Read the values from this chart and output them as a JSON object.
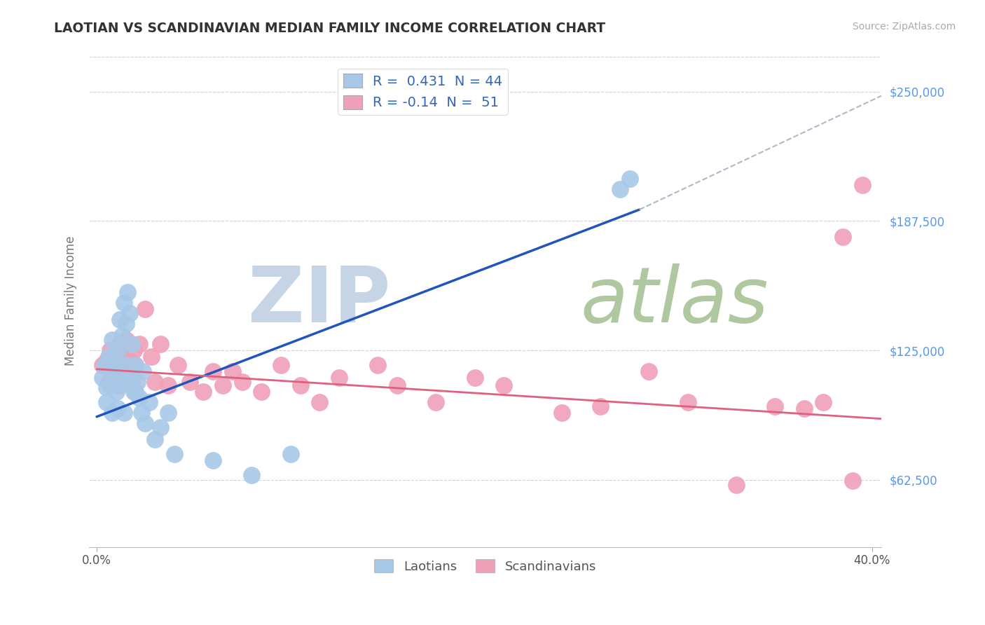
{
  "title": "LAOTIAN VS SCANDINAVIAN MEDIAN FAMILY INCOME CORRELATION CHART",
  "source": "Source: ZipAtlas.com",
  "ylabel": "Median Family Income",
  "legend_labels": [
    "Laotians",
    "Scandinavians"
  ],
  "ytick_labels": [
    "$62,500",
    "$125,000",
    "$187,500",
    "$250,000"
  ],
  "ytick_values": [
    62500,
    125000,
    187500,
    250000
  ],
  "y_min": 30000,
  "y_max": 268000,
  "x_min": -0.004,
  "x_max": 0.405,
  "blue_R": 0.431,
  "blue_N": 44,
  "pink_R": -0.14,
  "pink_N": 51,
  "background_color": "#ffffff",
  "grid_color": "#c8c8c8",
  "blue_color": "#a8c8e8",
  "pink_color": "#f0a0b8",
  "blue_line_color": "#2255bb",
  "pink_line_color": "#e06080",
  "dash_line_color": "#b0b8c8",
  "title_color": "#333333",
  "source_color": "#aaaaaa",
  "ytick_color": "#5599ee",
  "xtick_color": "#555555",
  "ylabel_color": "#777777",
  "watermark_zip_color": "#c5d5e5",
  "watermark_atlas_color": "#b0c8a0",
  "blue_line_x": [
    0.0,
    0.28
  ],
  "blue_line_y": [
    93000,
    193000
  ],
  "pink_line_x": [
    0.0,
    0.405
  ],
  "pink_line_y": [
    116000,
    92000
  ],
  "dash_line_x": [
    0.28,
    0.405
  ],
  "dash_line_y": [
    193000,
    248000
  ],
  "blue_scatter_x": [
    0.003,
    0.004,
    0.005,
    0.005,
    0.006,
    0.007,
    0.007,
    0.008,
    0.008,
    0.009,
    0.01,
    0.01,
    0.011,
    0.011,
    0.012,
    0.012,
    0.013,
    0.013,
    0.014,
    0.014,
    0.015,
    0.015,
    0.016,
    0.017,
    0.018,
    0.018,
    0.019,
    0.02,
    0.02,
    0.021,
    0.022,
    0.023,
    0.024,
    0.025,
    0.027,
    0.03,
    0.033,
    0.037,
    0.04,
    0.06,
    0.08,
    0.1,
    0.27,
    0.275
  ],
  "blue_scatter_y": [
    112000,
    118000,
    107000,
    100000,
    122000,
    115000,
    108000,
    130000,
    95000,
    110000,
    118000,
    105000,
    125000,
    97000,
    140000,
    108000,
    132000,
    112000,
    148000,
    95000,
    118000,
    138000,
    153000,
    143000,
    113000,
    128000,
    105000,
    118000,
    105000,
    110000,
    102000,
    95000,
    115000,
    90000,
    100000,
    82000,
    88000,
    95000,
    75000,
    72000,
    65000,
    75000,
    203000,
    208000
  ],
  "pink_scatter_x": [
    0.003,
    0.005,
    0.006,
    0.007,
    0.008,
    0.009,
    0.01,
    0.011,
    0.012,
    0.013,
    0.014,
    0.015,
    0.016,
    0.017,
    0.018,
    0.019,
    0.02,
    0.022,
    0.025,
    0.028,
    0.03,
    0.033,
    0.037,
    0.042,
    0.048,
    0.055,
    0.06,
    0.065,
    0.07,
    0.075,
    0.085,
    0.095,
    0.105,
    0.115,
    0.125,
    0.145,
    0.155,
    0.175,
    0.195,
    0.21,
    0.24,
    0.26,
    0.285,
    0.305,
    0.33,
    0.35,
    0.365,
    0.375,
    0.385,
    0.39,
    0.395
  ],
  "pink_scatter_y": [
    118000,
    120000,
    110000,
    125000,
    115000,
    112000,
    120000,
    108000,
    128000,
    118000,
    122000,
    130000,
    115000,
    120000,
    110000,
    125000,
    118000,
    128000,
    145000,
    122000,
    110000,
    128000,
    108000,
    118000,
    110000,
    105000,
    115000,
    108000,
    115000,
    110000,
    105000,
    118000,
    108000,
    100000,
    112000,
    118000,
    108000,
    100000,
    112000,
    108000,
    95000,
    98000,
    115000,
    100000,
    60000,
    98000,
    97000,
    100000,
    180000,
    62000,
    205000
  ]
}
